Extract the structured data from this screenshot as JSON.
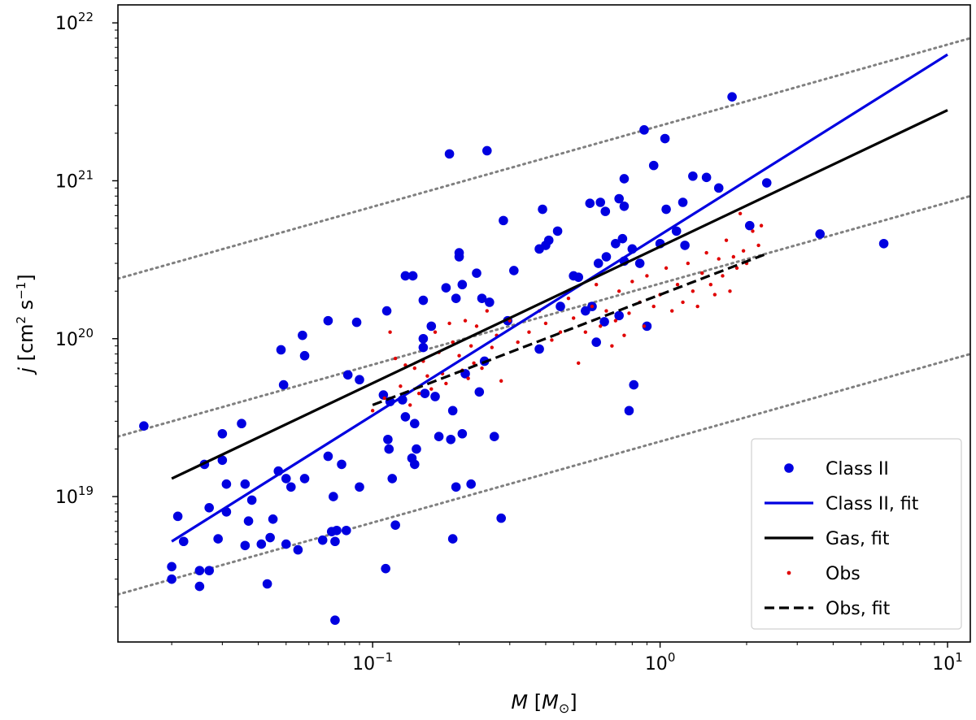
{
  "chart_data": {
    "type": "scatter",
    "xscale": "log",
    "yscale": "log",
    "xlim": [
      0.013,
      12
    ],
    "ylim": [
      1.2e+18,
      1.3e+22
    ],
    "xlabel": "M [M⊙]",
    "ylabel": "j [cm² s⁻¹]",
    "xticks": [
      {
        "value": 0.1,
        "mant": "10",
        "exp": "−1"
      },
      {
        "value": 1,
        "mant": "10",
        "exp": "0"
      },
      {
        "value": 10,
        "mant": "10",
        "exp": "1"
      }
    ],
    "yticks": [
      {
        "value": 1e+19,
        "mant": "10",
        "exp": "19"
      },
      {
        "value": 1e+20,
        "mant": "10",
        "exp": "20"
      },
      {
        "value": 1e+21,
        "mant": "10",
        "exp": "21"
      },
      {
        "value": 1e+22,
        "mant": "10",
        "exp": "22"
      }
    ],
    "guides": [
      {
        "x": [
          0.013,
          12
        ],
        "y": [
          2.4e+20,
          8e+21
        ]
      },
      {
        "x": [
          0.013,
          12
        ],
        "y": [
          2.4e+19,
          8e+20
        ]
      },
      {
        "x": [
          0.013,
          12
        ],
        "y": [
          2.4e+18,
          8e+19
        ]
      }
    ],
    "series": [
      {
        "name": "Class II",
        "kind": "points",
        "color": "#0000e0",
        "points": [
          [
            0.016,
            2.8e+19
          ],
          [
            0.02,
            3.6e+18
          ],
          [
            0.02,
            3e+18
          ],
          [
            0.021,
            7.5e+18
          ],
          [
            0.022,
            5.2e+18
          ],
          [
            0.025,
            3.4e+18
          ],
          [
            0.025,
            2.7e+18
          ],
          [
            0.026,
            1.6e+19
          ],
          [
            0.027,
            8.5e+18
          ],
          [
            0.027,
            3.4e+18
          ],
          [
            0.029,
            5.4e+18
          ],
          [
            0.03,
            1.7e+19
          ],
          [
            0.03,
            2.5e+19
          ],
          [
            0.031,
            1.2e+19
          ],
          [
            0.031,
            8e+18
          ],
          [
            0.035,
            2.9e+19
          ],
          [
            0.036,
            4.9e+18
          ],
          [
            0.036,
            1.2e+19
          ],
          [
            0.037,
            7e+18
          ],
          [
            0.038,
            9.5e+18
          ],
          [
            0.041,
            5e+18
          ],
          [
            0.043,
            2.8e+18
          ],
          [
            0.044,
            5.5e+18
          ],
          [
            0.045,
            7.2e+18
          ],
          [
            0.047,
            1.45e+19
          ],
          [
            0.048,
            8.5e+19
          ],
          [
            0.049,
            5.1e+19
          ],
          [
            0.05,
            5e+18
          ],
          [
            0.05,
            1.3e+19
          ],
          [
            0.052,
            1.15e+19
          ],
          [
            0.055,
            4.6e+18
          ],
          [
            0.057,
            1.05e+20
          ],
          [
            0.058,
            7.8e+19
          ],
          [
            0.058,
            1.3e+19
          ],
          [
            0.067,
            5.3e+18
          ],
          [
            0.07,
            1.3e+20
          ],
          [
            0.07,
            1.8e+19
          ],
          [
            0.072,
            6e+18
          ],
          [
            0.073,
            1e+19
          ],
          [
            0.074,
            1.65e+18
          ],
          [
            0.074,
            5.2e+18
          ],
          [
            0.075,
            6.1e+18
          ],
          [
            0.078,
            1.6e+19
          ],
          [
            0.081,
            6.1e+18
          ],
          [
            0.082,
            5.9e+19
          ],
          [
            0.088,
            1.27e+20
          ],
          [
            0.09,
            1.15e+19
          ],
          [
            0.09,
            5.5e+19
          ],
          [
            0.109,
            4.4e+19
          ],
          [
            0.111,
            3.5e+18
          ],
          [
            0.112,
            1.5e+20
          ],
          [
            0.113,
            2.3e+19
          ],
          [
            0.114,
            2e+19
          ],
          [
            0.115,
            4e+19
          ],
          [
            0.117,
            1.3e+19
          ],
          [
            0.12,
            6.6e+18
          ],
          [
            0.127,
            4.1e+19
          ],
          [
            0.13,
            3.2e+19
          ],
          [
            0.13,
            2.5e+20
          ],
          [
            0.138,
            2.5e+20
          ],
          [
            0.137,
            1.75e+19
          ],
          [
            0.14,
            1.6e+19
          ],
          [
            0.14,
            2.9e+19
          ],
          [
            0.142,
            2e+19
          ],
          [
            0.15,
            1e+20
          ],
          [
            0.15,
            1.75e+20
          ],
          [
            0.15,
            8.8e+19
          ],
          [
            0.152,
            4.5e+19
          ],
          [
            0.16,
            1.2e+20
          ],
          [
            0.165,
            4.3e+19
          ],
          [
            0.17,
            2.4e+19
          ],
          [
            0.18,
            2.1e+20
          ],
          [
            0.185,
            1.48e+21
          ],
          [
            0.187,
            2.3e+19
          ],
          [
            0.19,
            3.5e+19
          ],
          [
            0.19,
            5.4e+18
          ],
          [
            0.195,
            1.8e+20
          ],
          [
            0.195,
            1.15e+19
          ],
          [
            0.2,
            3.5e+20
          ],
          [
            0.2,
            3.3e+20
          ],
          [
            0.205,
            2.5e+19
          ],
          [
            0.205,
            2.2e+20
          ],
          [
            0.21,
            6e+19
          ],
          [
            0.22,
            1.2e+19
          ],
          [
            0.23,
            2.6e+20
          ],
          [
            0.235,
            4.6e+19
          ],
          [
            0.24,
            1.8e+20
          ],
          [
            0.245,
            7.2e+19
          ],
          [
            0.25,
            1.55e+21
          ],
          [
            0.255,
            1.7e+20
          ],
          [
            0.265,
            2.4e+19
          ],
          [
            0.28,
            7.3e+18
          ],
          [
            0.285,
            5.6e+20
          ],
          [
            0.295,
            1.3e+20
          ],
          [
            0.31,
            2.7e+20
          ],
          [
            0.38,
            8.6e+19
          ],
          [
            0.38,
            3.7e+20
          ],
          [
            0.39,
            6.6e+20
          ],
          [
            0.4,
            3.9e+20
          ],
          [
            0.41,
            4.2e+20
          ],
          [
            0.44,
            4.8e+20
          ],
          [
            0.45,
            1.6e+20
          ],
          [
            0.5,
            2.5e+20
          ],
          [
            0.52,
            2.45e+20
          ],
          [
            0.55,
            1.5e+20
          ],
          [
            0.57,
            7.2e+20
          ],
          [
            0.58,
            1.6e+20
          ],
          [
            0.6,
            9.5e+19
          ],
          [
            0.61,
            3e+20
          ],
          [
            0.62,
            7.3e+20
          ],
          [
            0.64,
            1.28e+20
          ],
          [
            0.645,
            6.4e+20
          ],
          [
            0.65,
            3.3e+20
          ],
          [
            0.7,
            4e+20
          ],
          [
            0.72,
            7.7e+20
          ],
          [
            0.72,
            1.4e+20
          ],
          [
            0.74,
            4.3e+20
          ],
          [
            0.75,
            3.1e+20
          ],
          [
            0.75,
            6.9e+20
          ],
          [
            0.75,
            1.03e+21
          ],
          [
            0.78,
            3.5e+19
          ],
          [
            0.8,
            3.7e+20
          ],
          [
            0.81,
            5.1e+19
          ],
          [
            0.85,
            3e+20
          ],
          [
            0.88,
            2.1e+21
          ],
          [
            0.9,
            1.2e+20
          ],
          [
            0.95,
            1.25e+21
          ],
          [
            1.0,
            4e+20
          ],
          [
            1.04,
            1.85e+21
          ],
          [
            1.05,
            6.6e+20
          ],
          [
            1.14,
            4.8e+20
          ],
          [
            1.2,
            7.3e+20
          ],
          [
            1.22,
            3.9e+20
          ],
          [
            1.3,
            1.07e+21
          ],
          [
            1.45,
            1.05e+21
          ],
          [
            1.6,
            9e+20
          ],
          [
            1.78,
            3.4e+21
          ],
          [
            2.05,
            5.2e+20
          ],
          [
            2.35,
            9.7e+20
          ],
          [
            3.6,
            4.6e+20
          ],
          [
            6.0,
            4e+20
          ]
        ]
      },
      {
        "name": "Class II, fit",
        "kind": "line",
        "color": "#0000e0",
        "x": [
          0.02,
          10
        ],
        "y": [
          5.2e+18,
          6.3e+21
        ]
      },
      {
        "name": "Gas, fit",
        "kind": "line",
        "color": "#000000",
        "x": [
          0.02,
          10
        ],
        "y": [
          1.3e+19,
          2.8e+21
        ]
      },
      {
        "name": "Obs",
        "kind": "points",
        "color": "#e00000",
        "points": [
          [
            0.1,
            3.5e+19
          ],
          [
            0.11,
            4.2e+19
          ],
          [
            0.115,
            1.1e+20
          ],
          [
            0.12,
            7.5e+19
          ],
          [
            0.125,
            5e+19
          ],
          [
            0.13,
            6.8e+19
          ],
          [
            0.135,
            3.8e+19
          ],
          [
            0.14,
            6.5e+19
          ],
          [
            0.145,
            4.5e+19
          ],
          [
            0.15,
            7.2e+19
          ],
          [
            0.155,
            5.8e+19
          ],
          [
            0.16,
            4.8e+19
          ],
          [
            0.165,
            1.1e+20
          ],
          [
            0.17,
            8.2e+19
          ],
          [
            0.175,
            6e+19
          ],
          [
            0.18,
            5.2e+19
          ],
          [
            0.185,
            1.25e+20
          ],
          [
            0.19,
            9.5e+19
          ],
          [
            0.2,
            7.8e+19
          ],
          [
            0.205,
            6.3e+19
          ],
          [
            0.21,
            1.3e+20
          ],
          [
            0.215,
            5.6e+19
          ],
          [
            0.22,
            9e+19
          ],
          [
            0.225,
            7e+19
          ],
          [
            0.23,
            1.2e+20
          ],
          [
            0.24,
            6.5e+19
          ],
          [
            0.25,
            1.5e+20
          ],
          [
            0.26,
            8.8e+19
          ],
          [
            0.27,
            1.05e+20
          ],
          [
            0.28,
            5.4e+19
          ],
          [
            0.3,
            1.3e+20
          ],
          [
            0.32,
            9.5e+19
          ],
          [
            0.35,
            1.1e+20
          ],
          [
            0.38,
            1.5e+20
          ],
          [
            0.4,
            1.25e+20
          ],
          [
            0.42,
            9.8e+19
          ],
          [
            0.45,
            1.1e+20
          ],
          [
            0.48,
            1.8e+20
          ],
          [
            0.5,
            1.35e+20
          ],
          [
            0.52,
            7e+19
          ],
          [
            0.55,
            1.1e+20
          ],
          [
            0.58,
            1.6e+20
          ],
          [
            0.6,
            2.2e+20
          ],
          [
            0.62,
            1.2e+20
          ],
          [
            0.65,
            1.5e+20
          ],
          [
            0.68,
            9e+19
          ],
          [
            0.7,
            1.3e+20
          ],
          [
            0.72,
            2e+20
          ],
          [
            0.75,
            1.05e+20
          ],
          [
            0.78,
            1.45e+20
          ],
          [
            0.8,
            2.3e+20
          ],
          [
            0.85,
            1.7e+20
          ],
          [
            0.88,
            1.2e+20
          ],
          [
            0.9,
            2.5e+20
          ],
          [
            0.95,
            1.6e+20
          ],
          [
            1.0,
            1.9e+20
          ],
          [
            1.05,
            2.8e+20
          ],
          [
            1.1,
            1.5e+20
          ],
          [
            1.15,
            2.2e+20
          ],
          [
            1.2,
            1.7e+20
          ],
          [
            1.25,
            3e+20
          ],
          [
            1.3,
            2e+20
          ],
          [
            1.35,
            1.6e+20
          ],
          [
            1.4,
            2.6e+20
          ],
          [
            1.45,
            3.5e+20
          ],
          [
            1.5,
            2.2e+20
          ],
          [
            1.55,
            1.9e+20
          ],
          [
            1.6,
            3.2e+20
          ],
          [
            1.65,
            2.5e+20
          ],
          [
            1.7,
            4.2e+20
          ],
          [
            1.75,
            2e+20
          ],
          [
            1.8,
            3.3e+20
          ],
          [
            1.85,
            2.8e+20
          ],
          [
            1.9,
            6.2e+20
          ],
          [
            1.95,
            3.6e+20
          ],
          [
            2.0,
            3e+20
          ],
          [
            2.1,
            4.8e+20
          ],
          [
            2.2,
            3.9e+20
          ],
          [
            2.25,
            5.2e+20
          ]
        ]
      },
      {
        "name": "Obs, fit",
        "kind": "dashed",
        "color": "#000000",
        "x": [
          0.1,
          2.3
        ],
        "y": [
          3.8e+19,
          3.4e+20
        ]
      }
    ],
    "legend": {
      "placement": "lower-right",
      "entries": [
        {
          "label": "Class II",
          "kind": "points",
          "color": "#0000e0"
        },
        {
          "label": "Class II, fit",
          "kind": "line",
          "color": "#0000e0"
        },
        {
          "label": "Gas, fit",
          "kind": "line",
          "color": "#000000"
        },
        {
          "label": "Obs",
          "kind": "smallpoints",
          "color": "#e00000"
        },
        {
          "label": "Obs, fit",
          "kind": "dashed",
          "color": "#000000"
        }
      ]
    },
    "guide_color": "#808080"
  }
}
